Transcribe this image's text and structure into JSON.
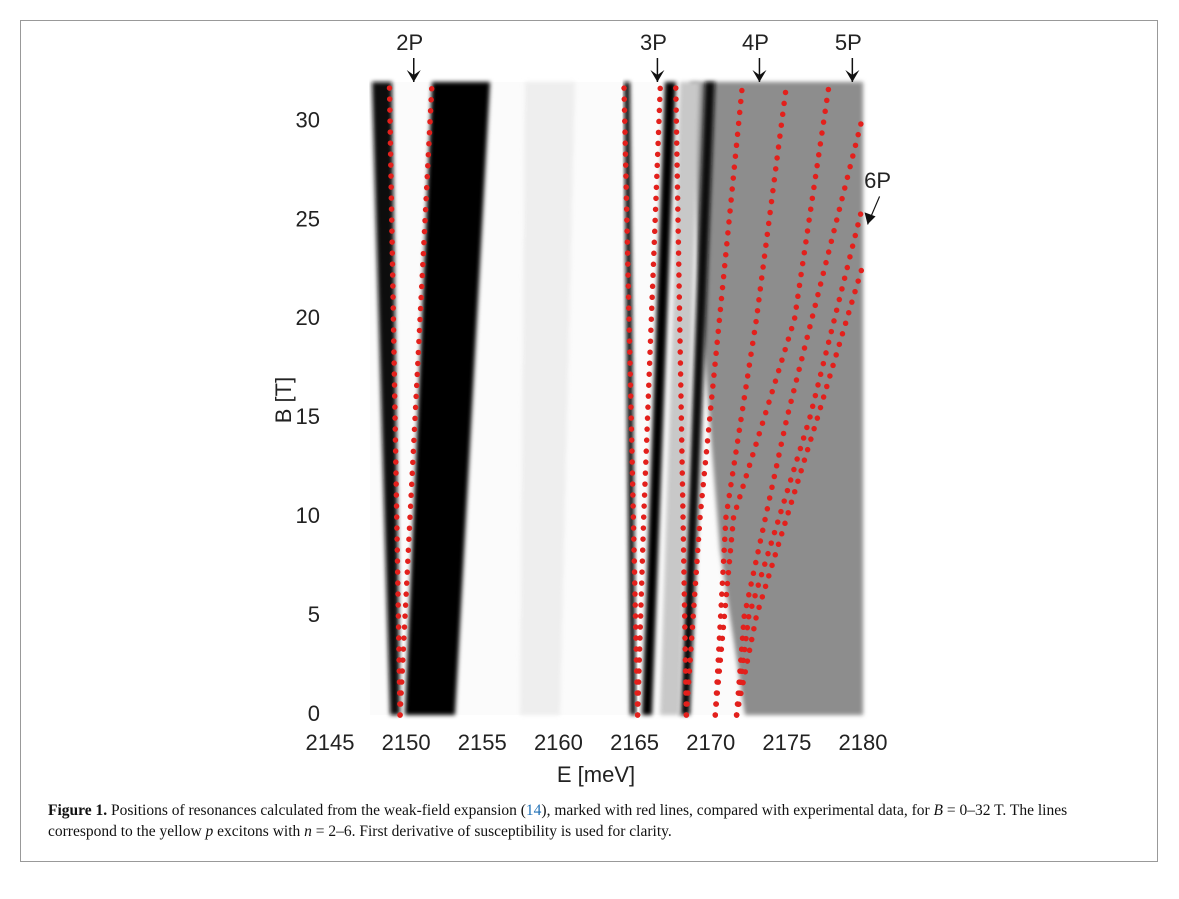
{
  "chart_data": {
    "type": "scatter-lines",
    "xlabel": "E [meV]",
    "ylabel": "B [T]",
    "xlim": [
      2145,
      2180
    ],
    "xticks": [
      2145,
      2150,
      2155,
      2160,
      2165,
      2170,
      2175,
      2180
    ],
    "ylim": [
      0,
      32
    ],
    "yticks": [
      0,
      5,
      10,
      15,
      20,
      25,
      30
    ],
    "color": "#e3201c",
    "series": [
      {
        "x": [
          2149.6,
          2148.9
        ],
        "y": [
          0,
          32
        ]
      },
      {
        "x": [
          2149.6,
          2151.7
        ],
        "y": [
          0,
          32
        ]
      },
      {
        "x": [
          2165.2,
          2164.3
        ],
        "y": [
          0,
          32
        ]
      },
      {
        "x": [
          2165.2,
          2165.6,
          2166.7
        ],
        "y": [
          0,
          10,
          32
        ]
      },
      {
        "x": [
          2168.4,
          2167.7
        ],
        "y": [
          0,
          32
        ]
      },
      {
        "x": [
          2168.4,
          2169.3,
          2172.1
        ],
        "y": [
          0,
          10,
          32
        ]
      },
      {
        "x": [
          2170.3,
          2171.0,
          2173.0,
          2175.0
        ],
        "y": [
          0,
          10,
          20,
          32
        ]
      },
      {
        "x": [
          2170.3,
          2171.5,
          2175.5,
          2177.8
        ],
        "y": [
          0,
          10,
          20,
          32
        ]
      },
      {
        "x": [
          2171.7,
          2172.2,
          2175.0,
          2179.9
        ],
        "y": [
          0,
          5,
          15,
          30
        ]
      },
      {
        "x": [
          2171.7,
          2172.5,
          2176.5,
          2179.9
        ],
        "y": [
          0,
          5,
          15,
          25.5
        ]
      },
      {
        "x": [
          2171.7,
          2173.0,
          2177.0,
          2179.9
        ],
        "y": [
          0,
          5,
          15,
          22.5
        ]
      }
    ],
    "annotations": [
      {
        "text": "2P",
        "x": 2150.5,
        "y": 32
      },
      {
        "text": "3P",
        "x": 2166.5,
        "y": 32
      },
      {
        "text": "4P",
        "x": 2173.2,
        "y": 32
      },
      {
        "text": "5P",
        "x": 2179.3,
        "y": 32
      },
      {
        "text": "6P",
        "x": 2180.3,
        "y": 24.8
      }
    ]
  },
  "caption": {
    "label": "Figure 1.",
    "parts": [
      "Positions of resonances calculated from the weak-field expansion (",
      "14",
      "), marked with red lines, compared with experimental data, for ",
      "B",
      " = 0–32 T. The lines correspond to the yellow ",
      "p",
      " excitons with ",
      "n",
      " = 2–6. First derivative of susceptibility is used for clarity."
    ]
  }
}
